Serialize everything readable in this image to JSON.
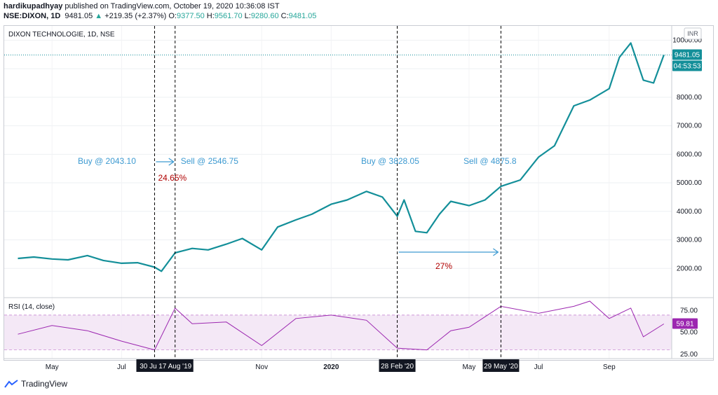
{
  "header": {
    "author": "hardikupadhyay",
    "published_text": "published on TradingView.com, October 19, 2020 10:36:08 IST"
  },
  "ohlc": {
    "symbol": "NSE:DIXON, 1D",
    "last": "9481.05",
    "change": "+219.35 (+2.37%)",
    "open_label": "O:",
    "open": "9377.50",
    "high_label": "H:",
    "high": "9561.70",
    "low_label": "L:",
    "low": "9280.60",
    "close_label": "C:",
    "close": "9481.05"
  },
  "chart_data": [
    {
      "type": "line",
      "title": "DIXON TECHNOLOGIE, 1D, NSE",
      "currency": "INR",
      "ylim": [
        1000,
        10500
      ],
      "yticks": [
        "10000.00",
        "9000.00",
        "8000.00",
        "7000.00",
        "6000.00",
        "5000.00",
        "4000.00",
        "3000.00",
        "2000.00"
      ],
      "xticks": [
        "May",
        "Jul",
        "Nov",
        "2020",
        "May",
        "Jul",
        "Sep"
      ],
      "last_price_label": "9481.05",
      "countdown_label": "04:53:53",
      "line_color": "#138f99",
      "series": [
        {
          "x": [
            "2019-04-01",
            "2019-04-15",
            "2019-05-01",
            "2019-05-15",
            "2019-06-01",
            "2019-06-15",
            "2019-07-01",
            "2019-07-15",
            "2019-07-30",
            "2019-08-05",
            "2019-08-17",
            "2019-09-01",
            "2019-09-15",
            "2019-10-01",
            "2019-10-15",
            "2019-11-01",
            "2019-11-15",
            "2019-12-01",
            "2019-12-15",
            "2020-01-01",
            "2020-01-15",
            "2020-02-01",
            "2020-02-15",
            "2020-02-28",
            "2020-03-05",
            "2020-03-15",
            "2020-03-25",
            "2020-04-05",
            "2020-04-15",
            "2020-05-01",
            "2020-05-15",
            "2020-05-29",
            "2020-06-15",
            "2020-07-01",
            "2020-07-15",
            "2020-08-01",
            "2020-08-15",
            "2020-09-01",
            "2020-09-10",
            "2020-09-20",
            "2020-10-01",
            "2020-10-10",
            "2020-10-19"
          ],
          "values": [
            2350,
            2400,
            2330,
            2300,
            2450,
            2280,
            2180,
            2200,
            2043,
            1900,
            2547,
            2700,
            2650,
            2850,
            3050,
            2650,
            3450,
            3700,
            3900,
            4250,
            4400,
            4700,
            4500,
            3828,
            4400,
            3300,
            3250,
            3900,
            4350,
            4200,
            4400,
            4876,
            5100,
            5900,
            6300,
            7700,
            7900,
            8300,
            9400,
            9900,
            8600,
            8500,
            9481
          ]
        }
      ],
      "annotations": [
        {
          "text": "Buy @ 2043.10"
        },
        {
          "text": "Sell @ 2546.75"
        },
        {
          "text": "24.65%"
        },
        {
          "text": "Buy @ 3828.05"
        },
        {
          "text": "Sell @ 4875.8"
        },
        {
          "text": "27%"
        }
      ],
      "event_labels": [
        "30 Jul '19",
        "17 Aug '19",
        "28 Feb '20",
        "29 May '20"
      ]
    },
    {
      "type": "line",
      "title": "RSI (14, close)",
      "ylim": [
        20,
        90
      ],
      "band": [
        30,
        70
      ],
      "yticks": [
        "75.00",
        "50.00",
        "25.00"
      ],
      "last_value_label": "59.81",
      "line_color": "#9c27b0",
      "series": [
        {
          "x": [
            "2019-04-01",
            "2019-05-01",
            "2019-06-01",
            "2019-07-01",
            "2019-07-30",
            "2019-08-17",
            "2019-09-01",
            "2019-10-01",
            "2019-11-01",
            "2019-12-01",
            "2020-01-01",
            "2020-02-01",
            "2020-02-28",
            "2020-03-25",
            "2020-04-15",
            "2020-05-01",
            "2020-05-29",
            "2020-07-01",
            "2020-08-01",
            "2020-08-15",
            "2020-09-01",
            "2020-09-20",
            "2020-10-01",
            "2020-10-19"
          ],
          "values": [
            48,
            58,
            52,
            40,
            30,
            78,
            60,
            62,
            35,
            66,
            70,
            64,
            32,
            30,
            52,
            56,
            80,
            72,
            80,
            86,
            66,
            78,
            45,
            59.81
          ]
        }
      ]
    }
  ],
  "footer": {
    "brand": "TradingView"
  }
}
